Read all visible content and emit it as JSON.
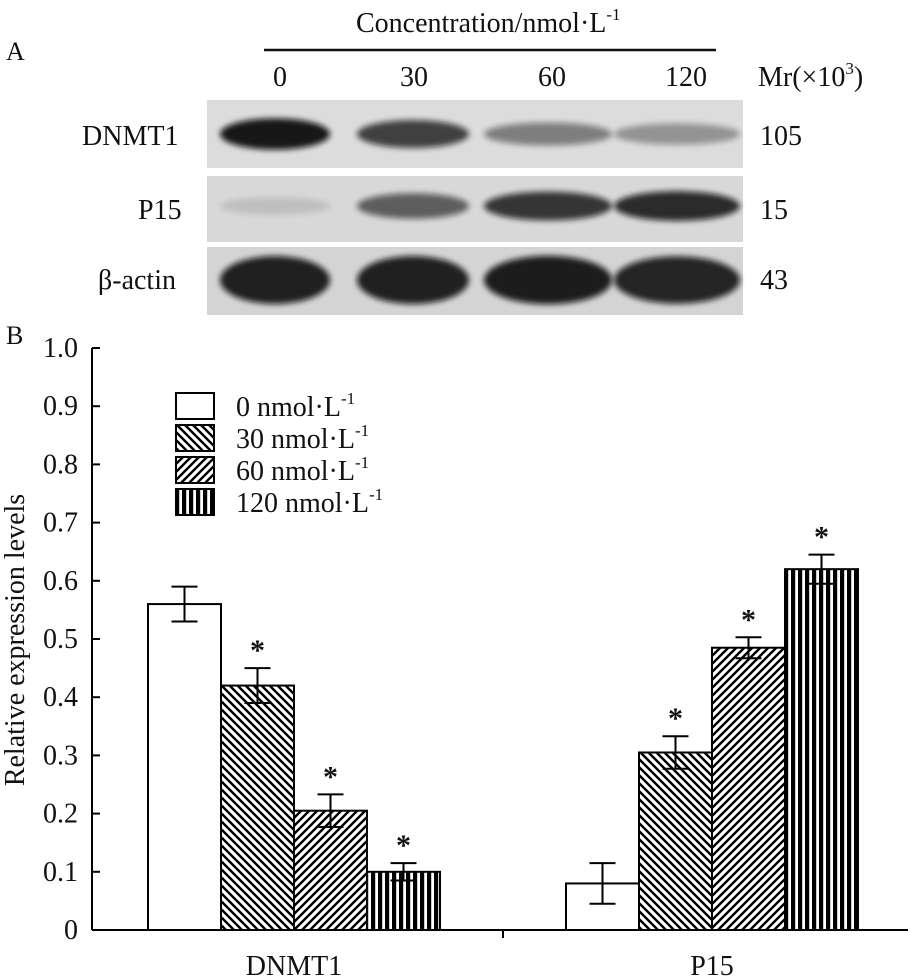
{
  "panel_a": {
    "label": "A",
    "header": "Concentration/nmol·L",
    "header_sup": "-1",
    "concentrations": [
      "0",
      "30",
      "60",
      "120"
    ],
    "mr_label": "Mr(×10",
    "mr_sup": "3",
    "mr_close": ")",
    "proteins": [
      {
        "name": "DNMT1",
        "mr": "105",
        "intensity": [
          0.95,
          0.75,
          0.45,
          0.35
        ]
      },
      {
        "name": "P15",
        "mr": "15",
        "intensity": [
          0.12,
          0.6,
          0.8,
          0.85
        ]
      },
      {
        "name": "β-actin",
        "mr": "43",
        "intensity": [
          0.9,
          0.9,
          0.92,
          0.88
        ]
      }
    ]
  },
  "panel_b": {
    "label": "B"
  },
  "chart_data": {
    "type": "bar",
    "title": "",
    "xlabel": "",
    "ylabel": "Relative expression levels",
    "ylim": [
      0,
      1.0
    ],
    "yticks": [
      "0",
      "0.1",
      "0.2",
      "0.3",
      "0.4",
      "0.5",
      "0.6",
      "0.7",
      "0.8",
      "0.9",
      "1.0"
    ],
    "categories": [
      "DNMT1",
      "P15"
    ],
    "series": [
      {
        "name": "0 nmol·L",
        "sup": "-1",
        "pattern": "empty",
        "values": [
          0.56,
          0.08
        ],
        "errors": [
          0.03,
          0.035
        ],
        "significant": [
          false,
          false
        ]
      },
      {
        "name": "30 nmol·L",
        "sup": "-1",
        "pattern": "diag-back",
        "values": [
          0.42,
          0.305
        ],
        "errors": [
          0.03,
          0.028
        ],
        "significant": [
          true,
          true
        ]
      },
      {
        "name": "60 nmol·L",
        "sup": "-1",
        "pattern": "diag-fwd",
        "values": [
          0.205,
          0.485
        ],
        "errors": [
          0.028,
          0.018
        ],
        "significant": [
          true,
          true
        ]
      },
      {
        "name": "120 nmol·L",
        "sup": "-1",
        "pattern": "vertical",
        "values": [
          0.1,
          0.62
        ],
        "errors": [
          0.015,
          0.025
        ],
        "significant": [
          true,
          true
        ]
      }
    ],
    "significance_mark": "*",
    "legend_position": "top-left"
  }
}
